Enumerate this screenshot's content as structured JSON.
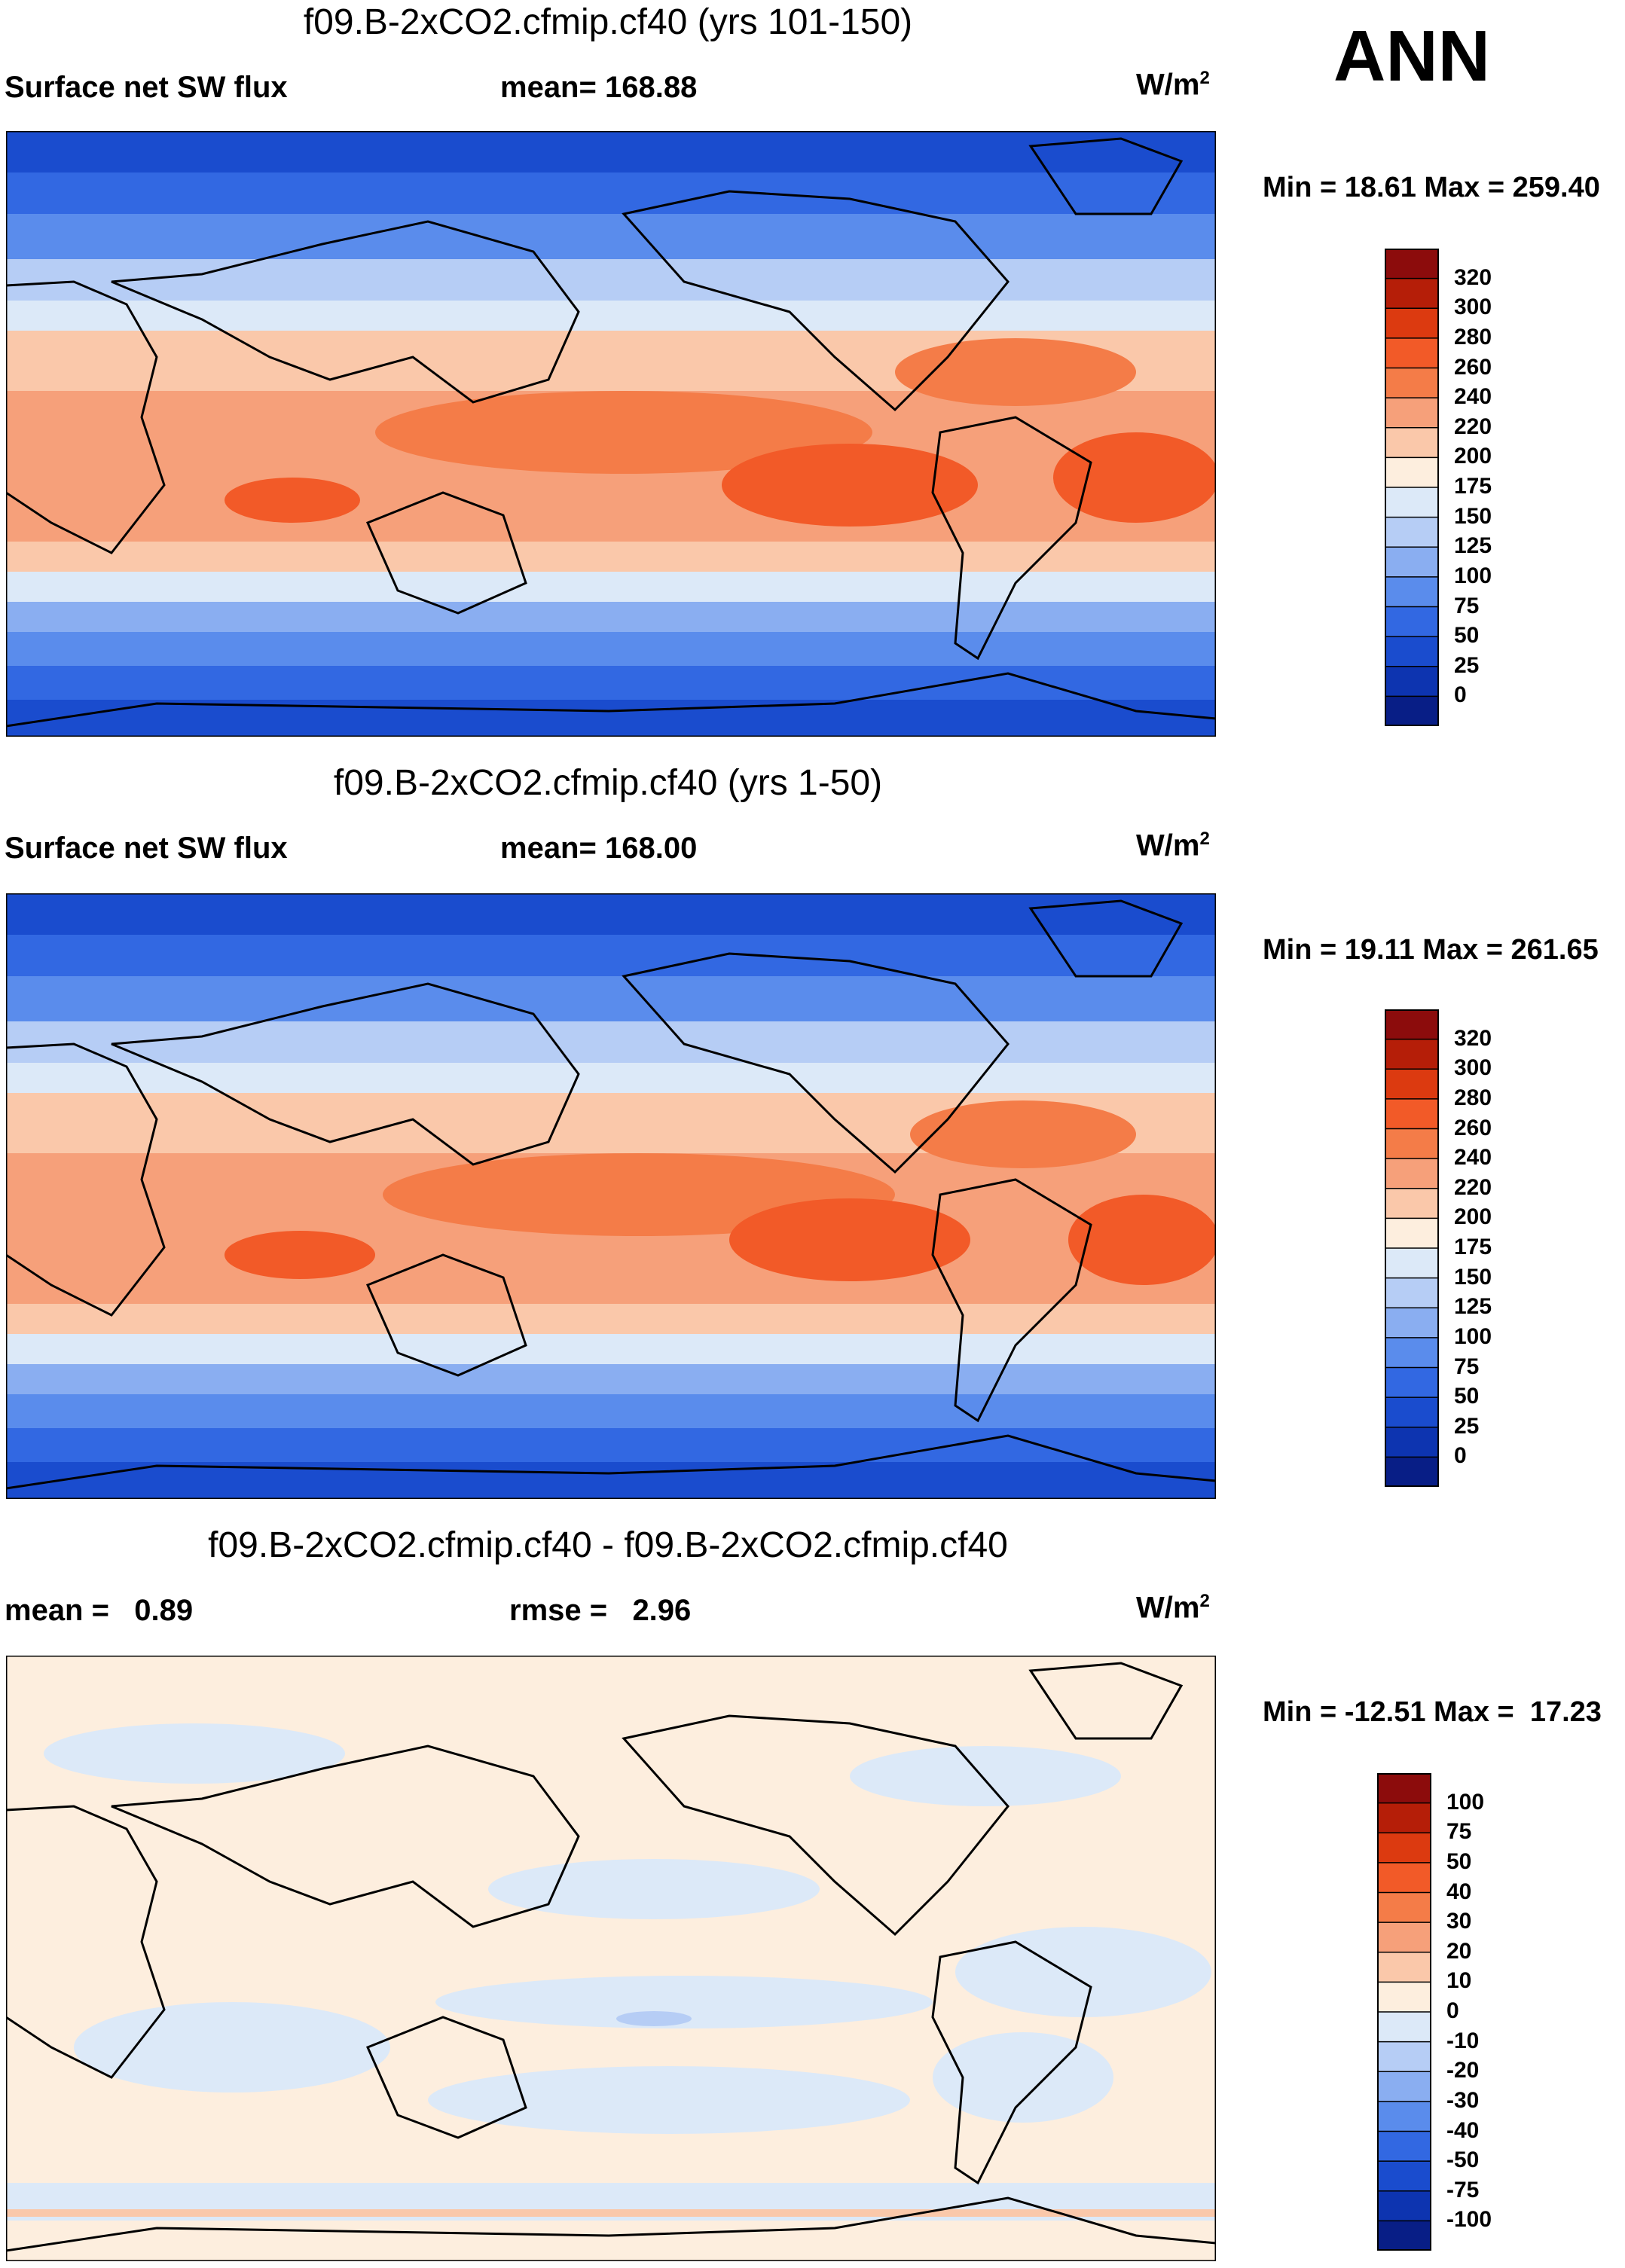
{
  "season": "ANN",
  "chart_data": [
    {
      "type": "heatmap",
      "title": "f09.B-2xCO2.cfmip.cf40 (yrs 101-150)",
      "left_label": "Surface net SW flux",
      "center_label": "mean= 168.88",
      "units_base": "W/m",
      "units_exp": "2",
      "min_max": "Min =  18.61 Max = 259.40",
      "colorbar_levels": [
        "320",
        "300",
        "280",
        "260",
        "240",
        "220",
        "200",
        "175",
        "150",
        "125",
        "100",
        "75",
        "50",
        "25",
        "0"
      ],
      "colorbar_colors": [
        "#8c0c0c",
        "#b51e08",
        "#dc3a10",
        "#f25a28",
        "#f47c48",
        "#f6a07a",
        "#fac8aa",
        "#fdeede",
        "#dce9f8",
        "#b6cdf5",
        "#8aaef1",
        "#5a8cec",
        "#3268e2",
        "#1a4cce",
        "#0d34b0",
        "#081e86"
      ]
    },
    {
      "type": "heatmap",
      "title": "f09.B-2xCO2.cfmip.cf40 (yrs 1-50)",
      "left_label": "Surface net SW flux",
      "center_label": "mean= 168.00",
      "units_base": "W/m",
      "units_exp": "2",
      "min_max": "Min =  19.11 Max = 261.65",
      "colorbar_levels": [
        "320",
        "300",
        "280",
        "260",
        "240",
        "220",
        "200",
        "175",
        "150",
        "125",
        "100",
        "75",
        "50",
        "25",
        "0"
      ],
      "colorbar_colors": [
        "#8c0c0c",
        "#b51e08",
        "#dc3a10",
        "#f25a28",
        "#f47c48",
        "#f6a07a",
        "#fac8aa",
        "#fdeede",
        "#dce9f8",
        "#b6cdf5",
        "#8aaef1",
        "#5a8cec",
        "#3268e2",
        "#1a4cce",
        "#0d34b0",
        "#081e86"
      ]
    },
    {
      "type": "heatmap",
      "title": "f09.B-2xCO2.cfmip.cf40 - f09.B-2xCO2.cfmip.cf40",
      "left_label": "mean =   0.89",
      "center_label": "rmse =   2.96",
      "units_base": "W/m",
      "units_exp": "2",
      "min_max": "Min = -12.51 Max =  17.23",
      "colorbar_levels": [
        "100",
        "75",
        "50",
        "40",
        "30",
        "20",
        "10",
        "0",
        "-10",
        "-20",
        "-30",
        "-40",
        "-50",
        "-75",
        "-100"
      ],
      "colorbar_colors": [
        "#8c0c0c",
        "#b51e08",
        "#dc3a10",
        "#f25a28",
        "#f47c48",
        "#f6a07a",
        "#fac8aa",
        "#fdeede",
        "#dce9f8",
        "#b6cdf5",
        "#8aaef1",
        "#5a8cec",
        "#3268e2",
        "#1a4cce",
        "#0d34b0",
        "#081e86"
      ]
    }
  ]
}
